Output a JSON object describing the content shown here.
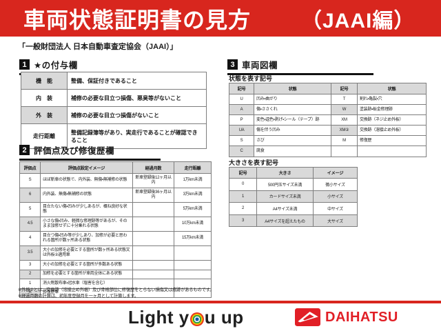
{
  "colors": {
    "banner_red": "#d8261e",
    "shaded_cell": "#d9d9d9",
    "daihatsu_red": "#e11f26",
    "header_black": "#111111"
  },
  "banner": {
    "title": "車両状態証明書の見方",
    "edition": "（JAAI編）"
  },
  "subtitle": "「一般財団法人 日本自動車査定協会（JAAI）」",
  "section1": {
    "number": "1",
    "title": "★の付与欄",
    "rows": [
      [
        "機　能",
        "整備、保証付きであること"
      ],
      [
        "内　装",
        "補修の必要な目立つ損傷、悪臭等がないこと"
      ],
      [
        "外　装",
        "補修の必要な目立つ損傷がないこと"
      ],
      [
        "走行距離",
        "整備記録簿等があり、実走行であることが確認できること"
      ]
    ]
  },
  "section2": {
    "number": "2",
    "title": "評価点及び修復歴欄",
    "headers": [
      "評価点",
      "評価点設定イメージ",
      "経過月数",
      "走行距離"
    ],
    "rows": [
      [
        "S",
        "ほぼ新車の状態で、内外装、無傷・無補修の状態",
        "新車登録後12ヶ月以内",
        "1万km未満"
      ],
      [
        "6",
        "内外装、無傷・無補修の状態",
        "新車登録後36ヶ月以内",
        "3万km未満"
      ],
      [
        "5",
        "目立たない傷・凹みが少しあるが、概ね良好な状態",
        "",
        "5万km未満"
      ],
      [
        "4.5",
        "小さな傷・凹み、軽微な修理跡等があるが、そのまま加修せずに十分乗れる状態",
        "",
        "10万km未満"
      ],
      [
        "4",
        "目立つ傷・凹み等が少しあり、加修が必要と思われる箇所が数ヶ所ある状態",
        "",
        "15万km未満"
      ],
      [
        "3.5",
        "大小の加修を必要とする箇所が数ヶ所ある状態又は外板②適用車",
        "",
        ""
      ],
      [
        "3",
        "大小の加修を必要とする箇所が多数ある状態",
        "",
        ""
      ],
      [
        "2",
        "加修を必要とする箇所が車両全体にある状態",
        "",
        ""
      ],
      [
        "1",
        "消火剤散布車・冠水車（塩害を含む）",
        "",
        ""
      ],
      [
        "R",
        "修復歴車",
        "",
        ""
      ]
    ]
  },
  "section3": {
    "number": "3",
    "title": "車両図欄",
    "state_symbols": {
      "heading": "状態を表す記号",
      "headers": [
        "記号",
        "状態",
        "記号",
        "状態"
      ],
      "rows": [
        [
          "U",
          "凹み・曲がり",
          "T",
          "割れ・亀裂・穴"
        ],
        [
          "A",
          "傷・ささくれ",
          "W",
          "塗装跡・板金修理跡"
        ],
        [
          "P",
          "変色・退色・剥げ・シール（テープ）跡",
          "XM",
          "交換跡（ネジ止め外板）"
        ],
        [
          "UA",
          "傷を伴う凹み",
          "XM②",
          "交換跡（溶接止め外板）"
        ],
        [
          "S",
          "さび",
          "M",
          "修復歴"
        ],
        [
          "C",
          "腐食",
          "",
          ""
        ]
      ]
    },
    "size_symbols": {
      "heading": "大きさを表す記号",
      "headers": [
        "記号",
        "大きさ",
        "イメージ"
      ],
      "rows": [
        [
          "0",
          "500円玉サイズ未満",
          "微小サイズ"
        ],
        [
          "1",
          "カードサイズ未満",
          "小サイズ"
        ],
        [
          "2",
          "A4サイズ未満",
          "中サイズ"
        ],
        [
          "3",
          "A4サイズを超えたもの",
          "大サイズ"
        ]
      ]
    }
  },
  "notes": [
    "※外板②とは、交換跡（溶接止め外板）及び骨格部位に修復歴をとらない損傷又は痕跡があるものです。",
    "※経過月数の計算は、初年度登録月を一ヶ月として計算します。"
  ],
  "footer": {
    "slogan_left": "Light y",
    "slogan_right": "u up",
    "brand": "DAIHATSU"
  }
}
